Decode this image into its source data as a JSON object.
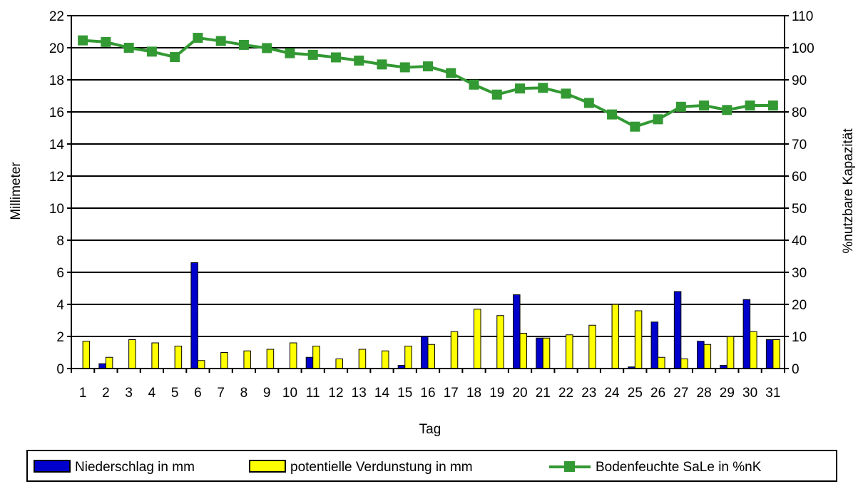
{
  "chart_data": {
    "type": "bar",
    "x": [
      1,
      2,
      3,
      4,
      5,
      6,
      7,
      8,
      9,
      10,
      11,
      12,
      13,
      14,
      15,
      16,
      17,
      18,
      19,
      20,
      21,
      22,
      23,
      24,
      25,
      26,
      27,
      28,
      29,
      30,
      31
    ],
    "xlabel": "Tag",
    "ylabel": "Millimeter",
    "y2label": "%nutzbare Kapazität",
    "ylim": [
      0,
      22
    ],
    "y2lim": [
      0,
      110
    ],
    "yticks": [
      0,
      2,
      4,
      6,
      8,
      10,
      12,
      14,
      16,
      18,
      20,
      22
    ],
    "y2ticks": [
      0,
      10,
      20,
      30,
      40,
      50,
      60,
      70,
      80,
      90,
      100,
      110
    ],
    "grid": "horizontal",
    "legend_position": "bottom",
    "series": [
      {
        "name": "Niederschlag in mm",
        "type": "bar",
        "axis": "left",
        "color": "#0000cc",
        "values": [
          0,
          0.3,
          0,
          0,
          0,
          6.6,
          0,
          0,
          0,
          0,
          0.7,
          0,
          0,
          0,
          0.2,
          2.0,
          0,
          0,
          0,
          4.6,
          1.9,
          0,
          0,
          0,
          0.1,
          2.9,
          4.8,
          1.7,
          0.2,
          4.3,
          1.8
        ]
      },
      {
        "name": "potentielle Verdunstung in mm",
        "type": "bar",
        "axis": "left",
        "color": "#ffff00",
        "values": [
          1.7,
          0.7,
          1.8,
          1.6,
          1.4,
          0.5,
          1.0,
          1.1,
          1.2,
          1.6,
          1.4,
          0.6,
          1.2,
          1.1,
          1.4,
          1.5,
          2.3,
          3.7,
          3.3,
          2.2,
          1.9,
          2.1,
          2.7,
          4.0,
          3.6,
          0.7,
          0.6,
          1.5,
          2.0,
          2.3,
          1.8
        ]
      },
      {
        "name": "Bodenfeuchte SaLe in %nK",
        "type": "line",
        "axis": "right",
        "color": "#339933",
        "values": [
          102.3,
          101.8,
          100.0,
          98.8,
          97.1,
          103.1,
          102.1,
          100.9,
          99.9,
          98.3,
          97.8,
          97.0,
          96.0,
          94.8,
          93.9,
          94.2,
          92.1,
          88.5,
          85.4,
          87.3,
          87.5,
          85.7,
          82.8,
          79.2,
          75.4,
          77.7,
          81.6,
          82.0,
          80.6,
          82.0,
          82.0
        ]
      }
    ]
  }
}
